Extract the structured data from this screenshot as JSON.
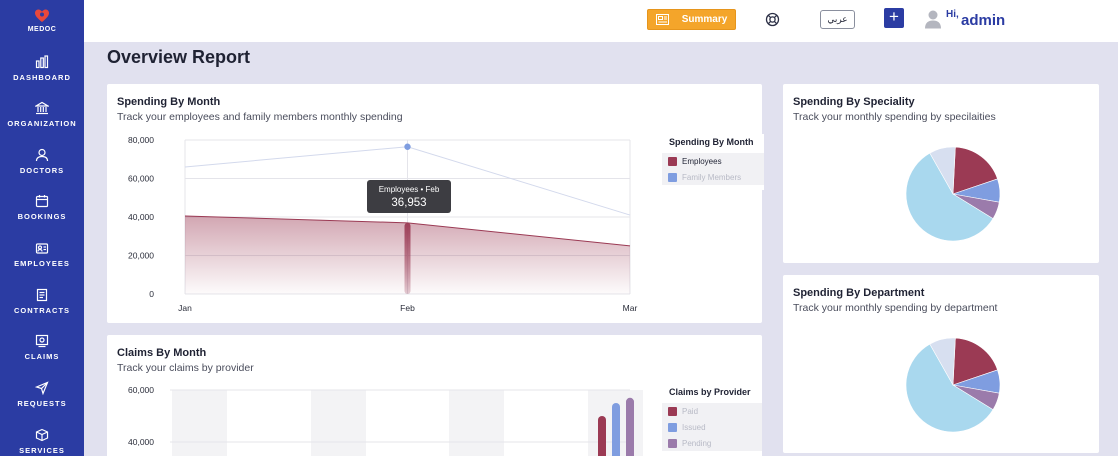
{
  "app": {
    "brand": "MEDOC"
  },
  "sidebar": {
    "items": [
      {
        "label": "DASHBOARD",
        "icon": "bar-chart-icon"
      },
      {
        "label": "ORGANIZATION",
        "icon": "bank-icon"
      },
      {
        "label": "DOCTORS",
        "icon": "user-icon"
      },
      {
        "label": "BOOKINGS",
        "icon": "calendar-icon"
      },
      {
        "label": "EMPLOYEES",
        "icon": "id-card-icon"
      },
      {
        "label": "CONTRACTS",
        "icon": "document-icon"
      },
      {
        "label": "CLAIMS",
        "icon": "receipt-icon"
      },
      {
        "label": "REQUESTS",
        "icon": "send-icon"
      },
      {
        "label": "SERVICES",
        "icon": "box-icon"
      }
    ]
  },
  "header": {
    "summary_label": "Summary",
    "language_label": "عربي",
    "plus_label": "+",
    "greeting": "Hi,",
    "username": "admin"
  },
  "page": {
    "title": "Overview Report"
  },
  "colors": {
    "sidebar": "#2b3ca3",
    "accent": "#f4a52a",
    "employees": "#9b3a54",
    "family": "#7f9de0",
    "pending": "#9b7bab",
    "light_blue": "#a9d8ee"
  },
  "cards": {
    "spending_month": {
      "title": "Spending By Month",
      "subtitle": "Track your employees and family members monthly spending",
      "legend_title": "Spending By Month",
      "legend": [
        "Employees",
        "Family Members"
      ],
      "tooltip_label": "Employees • Feb",
      "tooltip_value": "36,953"
    },
    "claims_month": {
      "title": "Claims By Month",
      "subtitle": "Track your claims by provider",
      "legend_title": "Claims by Provider",
      "legend": [
        "Paid",
        "Issued",
        "Pending"
      ]
    },
    "speciality": {
      "title": "Spending By Speciality",
      "subtitle": "Track your monthly spending by specilaities"
    },
    "department": {
      "title": "Spending By Department",
      "subtitle": "Track your monthly spending by department"
    }
  },
  "chart_data": [
    {
      "type": "area",
      "title": "Spending By Month",
      "categories": [
        "Jan",
        "Feb",
        "Mar"
      ],
      "ylim": [
        0,
        80000
      ],
      "yticks": [
        "80,000",
        "60,000",
        "40,000",
        "20,000",
        "0"
      ],
      "series": [
        {
          "name": "Employees",
          "values": [
            40500,
            36953,
            25000
          ]
        },
        {
          "name": "Family Members",
          "values": [
            66000,
            76500,
            41000
          ]
        }
      ],
      "legend": "right"
    },
    {
      "type": "bar",
      "title": "Claims By Month",
      "ylim": [
        0,
        60000
      ],
      "yticks": [
        "60,000",
        "40,000"
      ],
      "series": [
        {
          "name": "Paid",
          "values": [
            50000
          ]
        },
        {
          "name": "Issued",
          "values": [
            55000
          ]
        },
        {
          "name": "Pending",
          "values": [
            57000
          ]
        }
      ],
      "legend": "right"
    },
    {
      "type": "pie",
      "title": "Spending By Speciality",
      "values": [
        58,
        9,
        19,
        8,
        6
      ],
      "colors": [
        "#a9d8ee",
        "#d7dff0",
        "#9b3a54",
        "#7f9de0",
        "#9b7bab"
      ]
    },
    {
      "type": "pie",
      "title": "Spending By Department",
      "values": [
        58,
        9,
        19,
        8,
        6
      ],
      "colors": [
        "#a9d8ee",
        "#d7dff0",
        "#9b3a54",
        "#7f9de0",
        "#9b7bab"
      ]
    }
  ]
}
